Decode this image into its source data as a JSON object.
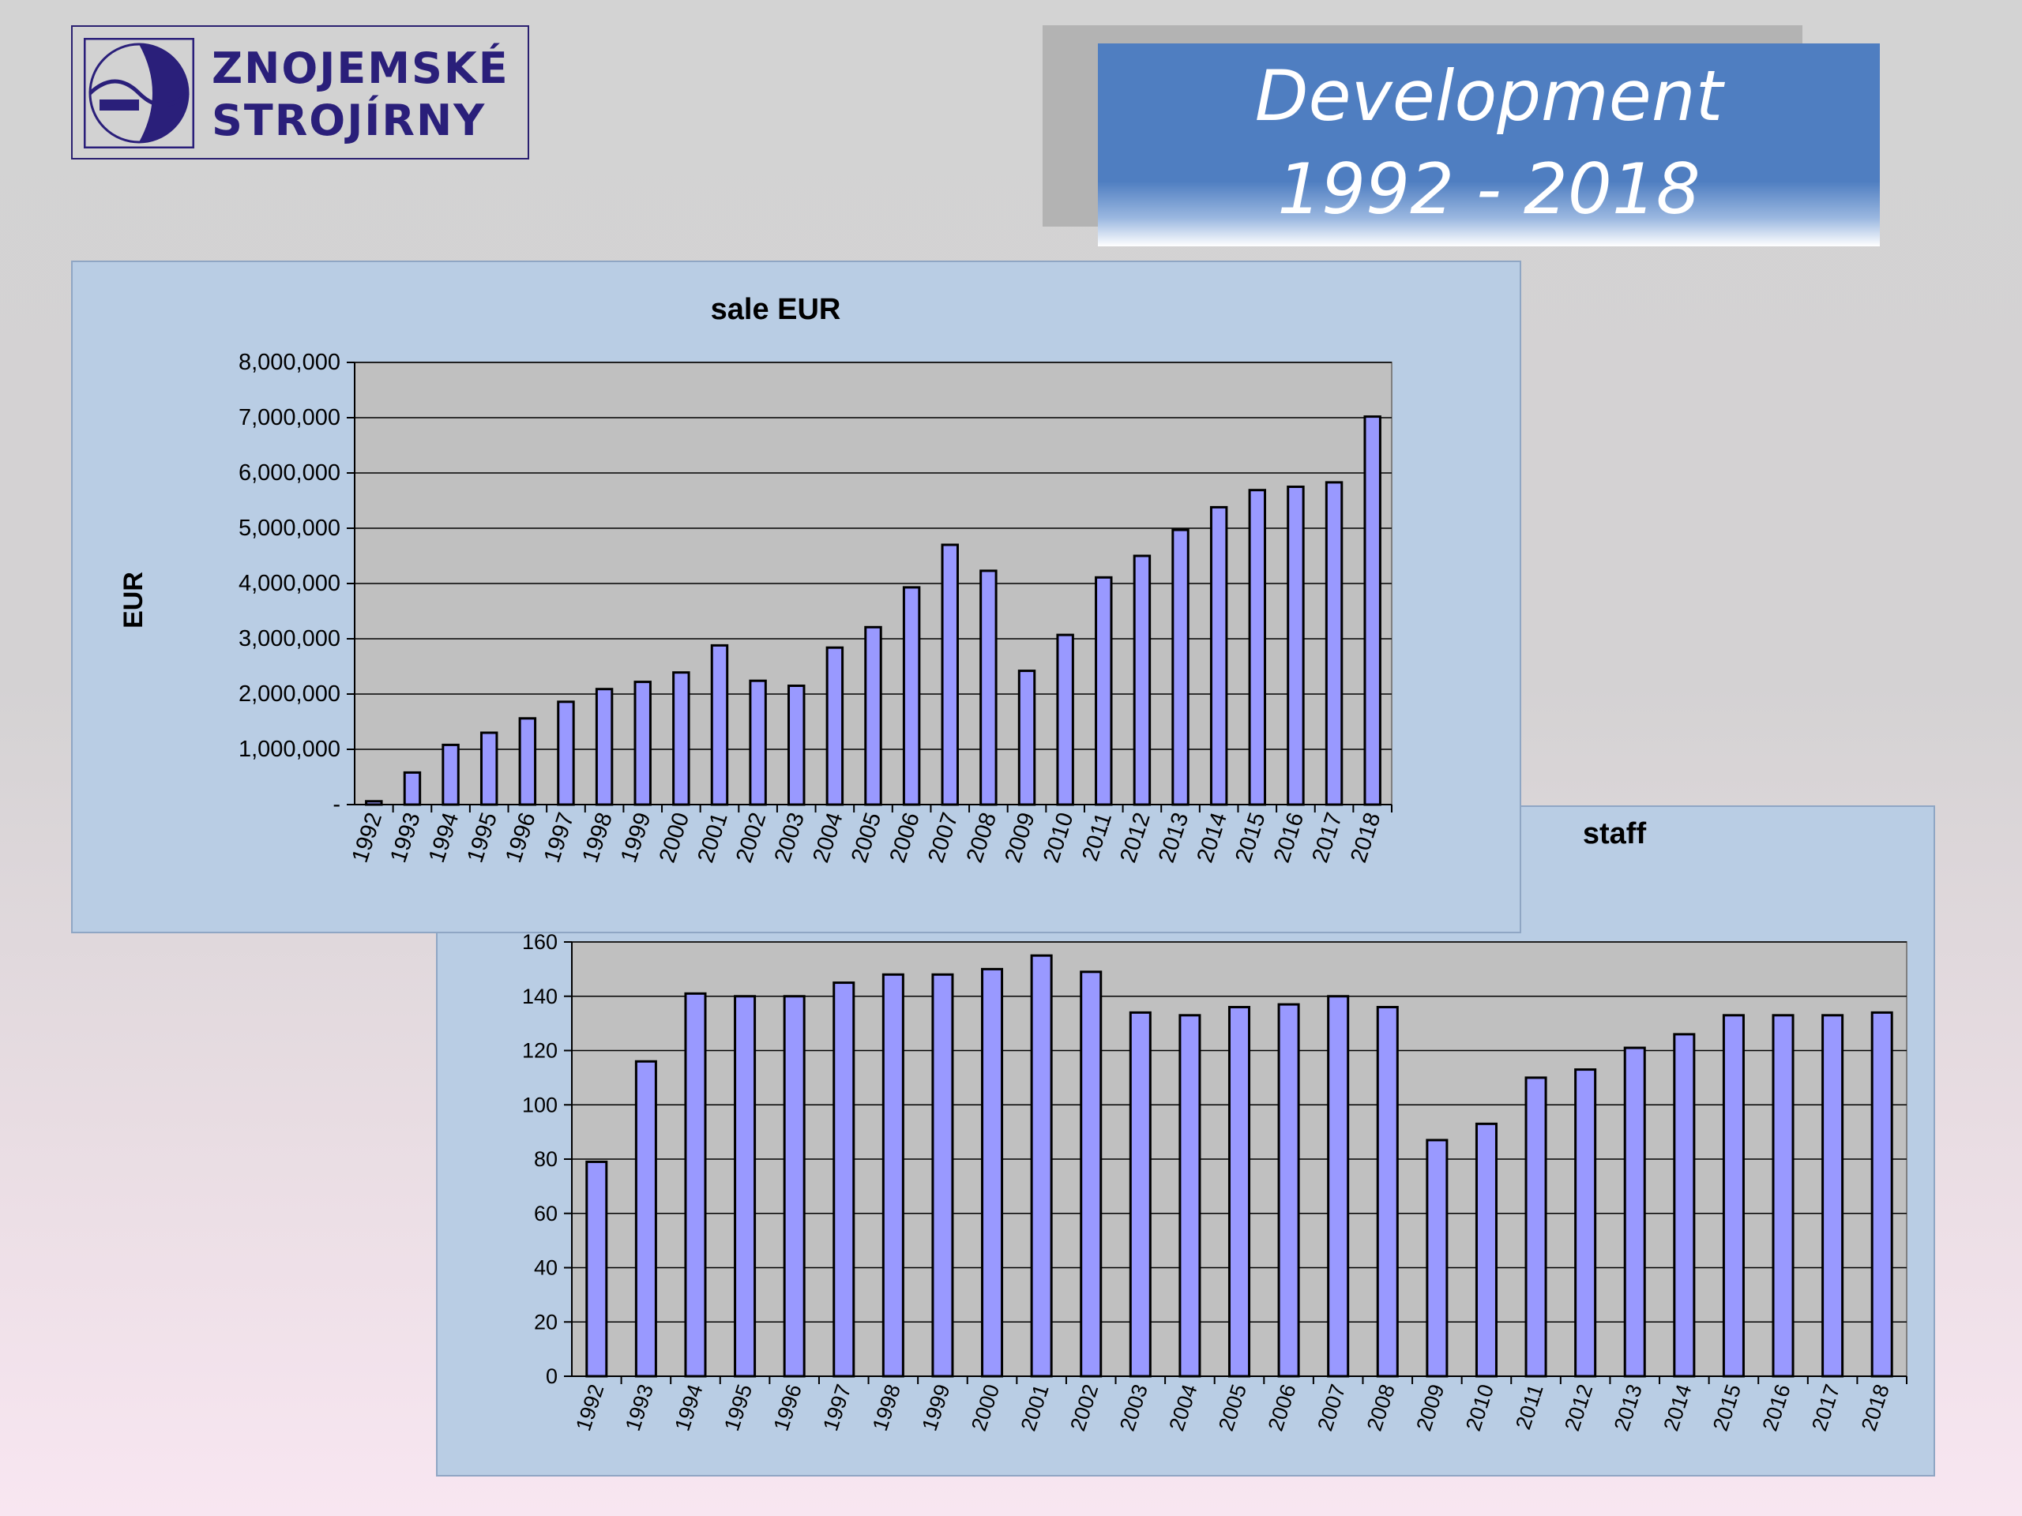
{
  "logo": {
    "line1": "ZNOJEMSKÉ",
    "line2": "STROJÍRNY"
  },
  "header": {
    "title_line1": "Development",
    "title_line2": "1992 - 2018"
  },
  "colors": {
    "bar_fill": "#9999ff",
    "plot_bg": "#c0c0c0",
    "panel_bg": "#b9cde4",
    "title_blue": "#4f7ec1"
  },
  "chart_data": [
    {
      "type": "bar",
      "title": "sale EUR",
      "xlabel": "",
      "ylabel": "EUR",
      "categories": [
        "1992",
        "1993",
        "1994",
        "1995",
        "1996",
        "1997",
        "1998",
        "1999",
        "2000",
        "2001",
        "2002",
        "2003",
        "2004",
        "2005",
        "2006",
        "2007",
        "2008",
        "2009",
        "2010",
        "2011",
        "2012",
        "2013",
        "2014",
        "2015",
        "2016",
        "2017",
        "2018"
      ],
      "values": [
        60000,
        580000,
        1080000,
        1300000,
        1560000,
        1860000,
        2090000,
        2220000,
        2390000,
        2880000,
        2240000,
        2150000,
        2840000,
        3210000,
        3930000,
        4700000,
        4230000,
        2420000,
        3070000,
        4110000,
        4500000,
        4970000,
        5380000,
        5690000,
        5750000,
        5830000,
        7020000
      ],
      "ylim": [
        0,
        8000000
      ],
      "yticks": [
        "-",
        "1,000,000",
        "2,000,000",
        "3,000,000",
        "4,000,000",
        "5,000,000",
        "6,000,000",
        "7,000,000",
        "8,000,000"
      ],
      "grid": true
    },
    {
      "type": "bar",
      "title": "staff",
      "xlabel": "",
      "ylabel": "",
      "categories": [
        "1992",
        "1993",
        "1994",
        "1995",
        "1996",
        "1997",
        "1998",
        "1999",
        "2000",
        "2001",
        "2002",
        "2003",
        "2004",
        "2005",
        "2006",
        "2007",
        "2008",
        "2009",
        "2010",
        "2011",
        "2012",
        "2013",
        "2014",
        "2015",
        "2016",
        "2017",
        "2018"
      ],
      "values": [
        79,
        116,
        141,
        140,
        140,
        145,
        148,
        148,
        150,
        155,
        149,
        134,
        133,
        136,
        137,
        140,
        136,
        87,
        93,
        110,
        113,
        121,
        126,
        133,
        133,
        133,
        134
      ],
      "ylim": [
        0,
        160
      ],
      "yticks": [
        "0",
        "20",
        "40",
        "60",
        "80",
        "100",
        "120",
        "140",
        "160"
      ],
      "grid": true
    }
  ]
}
